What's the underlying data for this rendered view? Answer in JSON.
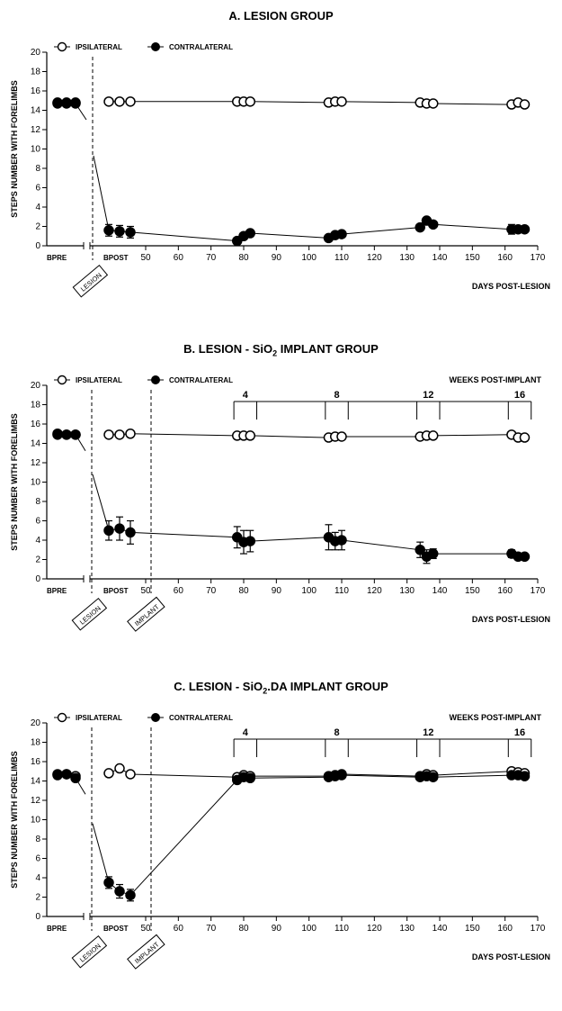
{
  "chart_data": [
    {
      "id": "A",
      "type": "line",
      "title": "A. LESION GROUP",
      "title_parts": [
        "A. LESION GROUP",
        "",
        ""
      ],
      "ylabel": "STEPS NUMBER WITH FORELIMBS",
      "xlabel": "DAYS POST-LESION",
      "ylim": [
        0,
        20
      ],
      "yticks": [
        "0",
        "2",
        "4",
        "6",
        "8",
        "10",
        "12",
        "14",
        "16",
        "18",
        "20"
      ],
      "xlim": [
        50,
        170
      ],
      "xticks": [
        "50",
        "60",
        "70",
        "80",
        "90",
        "100",
        "110",
        "120",
        "130",
        "140",
        "150",
        "160",
        "170"
      ],
      "categorical_labels": [
        "BPRE",
        "BPOST"
      ],
      "event_labels": [
        "LESION"
      ],
      "weeks_label": "",
      "weeks": [],
      "legend": [
        {
          "name": "IPSILATERAL",
          "marker": "open"
        },
        {
          "name": "CONTRALATERAL",
          "marker": "filled"
        }
      ],
      "series": [
        {
          "name": "IPSILATERAL",
          "bpre": [
            {
              "y": 14.8,
              "err": 0
            },
            {
              "y": 14.8,
              "err": 0
            },
            {
              "y": 14.8,
              "err": 0
            }
          ],
          "bpost": [
            {
              "y": 14.9,
              "err": 0
            },
            {
              "y": 14.9,
              "err": 0
            },
            {
              "y": 14.9,
              "err": 0.3
            }
          ],
          "points": [
            {
              "x": 78,
              "y": 14.9,
              "err": 0
            },
            {
              "x": 80,
              "y": 14.9,
              "err": 0
            },
            {
              "x": 82,
              "y": 14.9,
              "err": 0
            },
            {
              "x": 106,
              "y": 14.8,
              "err": 0
            },
            {
              "x": 108,
              "y": 14.9,
              "err": 0
            },
            {
              "x": 110,
              "y": 14.9,
              "err": 0
            },
            {
              "x": 134,
              "y": 14.8,
              "err": 0
            },
            {
              "x": 136,
              "y": 14.7,
              "err": 0
            },
            {
              "x": 138,
              "y": 14.7,
              "err": 0
            },
            {
              "x": 162,
              "y": 14.6,
              "err": 0
            },
            {
              "x": 164,
              "y": 14.8,
              "err": 0
            },
            {
              "x": 166,
              "y": 14.6,
              "err": 0
            }
          ]
        },
        {
          "name": "CONTRALATERAL",
          "bpre": [
            {
              "y": 14.7,
              "err": 0
            },
            {
              "y": 14.7,
              "err": 0
            },
            {
              "y": 14.7,
              "err": 0
            }
          ],
          "bpost": [
            {
              "y": 1.6,
              "err": 0.6
            },
            {
              "y": 1.5,
              "err": 0.6
            },
            {
              "y": 1.4,
              "err": 0.6
            }
          ],
          "points": [
            {
              "x": 78,
              "y": 0.5,
              "err": 0
            },
            {
              "x": 80,
              "y": 1.0,
              "err": 0
            },
            {
              "x": 82,
              "y": 1.3,
              "err": 0
            },
            {
              "x": 106,
              "y": 0.8,
              "err": 0
            },
            {
              "x": 108,
              "y": 1.1,
              "err": 0
            },
            {
              "x": 110,
              "y": 1.2,
              "err": 0
            },
            {
              "x": 134,
              "y": 1.9,
              "err": 0
            },
            {
              "x": 136,
              "y": 2.6,
              "err": 0
            },
            {
              "x": 138,
              "y": 2.2,
              "err": 0
            },
            {
              "x": 162,
              "y": 1.7,
              "err": 0.5
            },
            {
              "x": 164,
              "y": 1.7,
              "err": 0
            },
            {
              "x": 166,
              "y": 1.7,
              "err": 0
            }
          ]
        }
      ]
    },
    {
      "id": "B",
      "type": "line",
      "title": "B. LESION - SiO2 IMPLANT GROUP",
      "title_parts": [
        "B. LESION - SiO",
        "2",
        " IMPLANT GROUP"
      ],
      "ylabel": "STEPS NUMBER WITH FORELIMBS",
      "xlabel": "DAYS POST-LESION",
      "ylim": [
        0,
        20
      ],
      "yticks": [
        "0",
        "2",
        "4",
        "6",
        "8",
        "10",
        "12",
        "14",
        "16",
        "18",
        "20"
      ],
      "xlim": [
        50,
        170
      ],
      "xticks": [
        "50",
        "60",
        "70",
        "80",
        "90",
        "100",
        "110",
        "120",
        "130",
        "140",
        "150",
        "160",
        "170"
      ],
      "categorical_labels": [
        "BPRE",
        "BPOST"
      ],
      "event_labels": [
        "LESION",
        "IMPLANT"
      ],
      "weeks_label": "WEEKS POST-IMPLANT",
      "weeks": [
        {
          "label": "4",
          "start": 77,
          "end": 84
        },
        {
          "label": "8",
          "start": 105,
          "end": 112
        },
        {
          "label": "12",
          "start": 133,
          "end": 140
        },
        {
          "label": "16",
          "start": 161,
          "end": 168
        }
      ],
      "legend": [
        {
          "name": "IPSILATERAL",
          "marker": "open"
        },
        {
          "name": "CONTRALATERAL",
          "marker": "filled"
        }
      ],
      "series": [
        {
          "name": "IPSILATERAL",
          "bpre": [
            {
              "y": 15.0,
              "err": 0
            },
            {
              "y": 14.9,
              "err": 0
            },
            {
              "y": 14.9,
              "err": 0
            }
          ],
          "bpost": [
            {
              "y": 14.9,
              "err": 0
            },
            {
              "y": 14.9,
              "err": 0
            },
            {
              "y": 15.0,
              "err": 0.3
            }
          ],
          "points": [
            {
              "x": 78,
              "y": 14.8,
              "err": 0
            },
            {
              "x": 80,
              "y": 14.8,
              "err": 0
            },
            {
              "x": 82,
              "y": 14.8,
              "err": 0
            },
            {
              "x": 106,
              "y": 14.6,
              "err": 0
            },
            {
              "x": 108,
              "y": 14.7,
              "err": 0
            },
            {
              "x": 110,
              "y": 14.7,
              "err": 0
            },
            {
              "x": 134,
              "y": 14.7,
              "err": 0
            },
            {
              "x": 136,
              "y": 14.8,
              "err": 0
            },
            {
              "x": 138,
              "y": 14.8,
              "err": 0
            },
            {
              "x": 162,
              "y": 14.9,
              "err": 0
            },
            {
              "x": 164,
              "y": 14.6,
              "err": 0
            },
            {
              "x": 166,
              "y": 14.6,
              "err": 0
            }
          ]
        },
        {
          "name": "CONTRALATERAL",
          "bpre": [
            {
              "y": 14.9,
              "err": 0
            },
            {
              "y": 14.9,
              "err": 0
            },
            {
              "y": 14.9,
              "err": 0
            }
          ],
          "bpost": [
            {
              "y": 5.0,
              "err": 1.0
            },
            {
              "y": 5.2,
              "err": 1.2
            },
            {
              "y": 4.8,
              "err": 1.2
            }
          ],
          "points": [
            {
              "x": 78,
              "y": 4.3,
              "err": 1.1
            },
            {
              "x": 80,
              "y": 3.8,
              "err": 1.2
            },
            {
              "x": 82,
              "y": 3.9,
              "err": 1.1
            },
            {
              "x": 106,
              "y": 4.3,
              "err": 1.3
            },
            {
              "x": 108,
              "y": 3.9,
              "err": 0.9
            },
            {
              "x": 110,
              "y": 4.0,
              "err": 1.0
            },
            {
              "x": 134,
              "y": 3.0,
              "err": 0.8
            },
            {
              "x": 136,
              "y": 2.3,
              "err": 0.7
            },
            {
              "x": 138,
              "y": 2.6,
              "err": 0.5
            },
            {
              "x": 162,
              "y": 2.6,
              "err": 0.4
            },
            {
              "x": 164,
              "y": 2.3,
              "err": 0
            },
            {
              "x": 166,
              "y": 2.3,
              "err": 0
            }
          ]
        }
      ]
    },
    {
      "id": "C",
      "type": "line",
      "title": "C. LESION - SiO2.DA IMPLANT GROUP",
      "title_parts": [
        "C. LESION - SiO",
        "2",
        ".DA IMPLANT GROUP"
      ],
      "ylabel": "STEPS NUMBER WITH FORELIMBS",
      "xlabel": "DAYS POST-LESION",
      "ylim": [
        0,
        20
      ],
      "yticks": [
        "0",
        "2",
        "4",
        "6",
        "8",
        "10",
        "12",
        "14",
        "16",
        "18",
        "20"
      ],
      "xlim": [
        50,
        170
      ],
      "xticks": [
        "50",
        "60",
        "70",
        "80",
        "90",
        "100",
        "110",
        "120",
        "130",
        "140",
        "150",
        "160",
        "170"
      ],
      "categorical_labels": [
        "BPRE",
        "BPOST"
      ],
      "event_labels": [
        "LESION",
        "IMPLANT"
      ],
      "weeks_label": "WEEKS POST-IMPLANT",
      "weeks": [
        {
          "label": "4",
          "start": 77,
          "end": 84
        },
        {
          "label": "8",
          "start": 105,
          "end": 112
        },
        {
          "label": "12",
          "start": 133,
          "end": 140
        },
        {
          "label": "16",
          "start": 161,
          "end": 168
        }
      ],
      "legend": [
        {
          "name": "IPSILATERAL",
          "marker": "open"
        },
        {
          "name": "CONTRALATERAL",
          "marker": "filled"
        }
      ],
      "series": [
        {
          "name": "IPSILATERAL",
          "bpre": [
            {
              "y": 14.7,
              "err": 0
            },
            {
              "y": 14.7,
              "err": 0
            },
            {
              "y": 14.5,
              "err": 0
            }
          ],
          "bpost": [
            {
              "y": 14.8,
              "err": 0
            },
            {
              "y": 15.3,
              "err": 0
            },
            {
              "y": 14.7,
              "err": 0.3
            }
          ],
          "points": [
            {
              "x": 78,
              "y": 14.4,
              "err": 0
            },
            {
              "x": 80,
              "y": 14.6,
              "err": 0
            },
            {
              "x": 82,
              "y": 14.5,
              "err": 0
            },
            {
              "x": 106,
              "y": 14.5,
              "err": 0
            },
            {
              "x": 108,
              "y": 14.6,
              "err": 0
            },
            {
              "x": 110,
              "y": 14.7,
              "err": 0
            },
            {
              "x": 134,
              "y": 14.5,
              "err": 0
            },
            {
              "x": 136,
              "y": 14.7,
              "err": 0
            },
            {
              "x": 138,
              "y": 14.6,
              "err": 0
            },
            {
              "x": 162,
              "y": 15.0,
              "err": 0
            },
            {
              "x": 164,
              "y": 14.9,
              "err": 0
            },
            {
              "x": 166,
              "y": 14.8,
              "err": 0
            }
          ]
        },
        {
          "name": "CONTRALATERAL",
          "bpre": [
            {
              "y": 14.6,
              "err": 0
            },
            {
              "y": 14.7,
              "err": 0
            },
            {
              "y": 14.3,
              "err": 0
            }
          ],
          "bpost": [
            {
              "y": 3.5,
              "err": 0.6
            },
            {
              "y": 2.6,
              "err": 0.7
            },
            {
              "y": 2.2,
              "err": 0.6
            }
          ],
          "points": [
            {
              "x": 78,
              "y": 14.1,
              "err": 0
            },
            {
              "x": 80,
              "y": 14.4,
              "err": 0
            },
            {
              "x": 82,
              "y": 14.3,
              "err": 0
            },
            {
              "x": 106,
              "y": 14.4,
              "err": 0
            },
            {
              "x": 108,
              "y": 14.5,
              "err": 0
            },
            {
              "x": 110,
              "y": 14.6,
              "err": 0
            },
            {
              "x": 134,
              "y": 14.4,
              "err": 0
            },
            {
              "x": 136,
              "y": 14.5,
              "err": 0
            },
            {
              "x": 138,
              "y": 14.4,
              "err": 0
            },
            {
              "x": 162,
              "y": 14.6,
              "err": 0
            },
            {
              "x": 164,
              "y": 14.6,
              "err": 0
            },
            {
              "x": 166,
              "y": 14.5,
              "err": 0
            }
          ]
        }
      ]
    }
  ]
}
